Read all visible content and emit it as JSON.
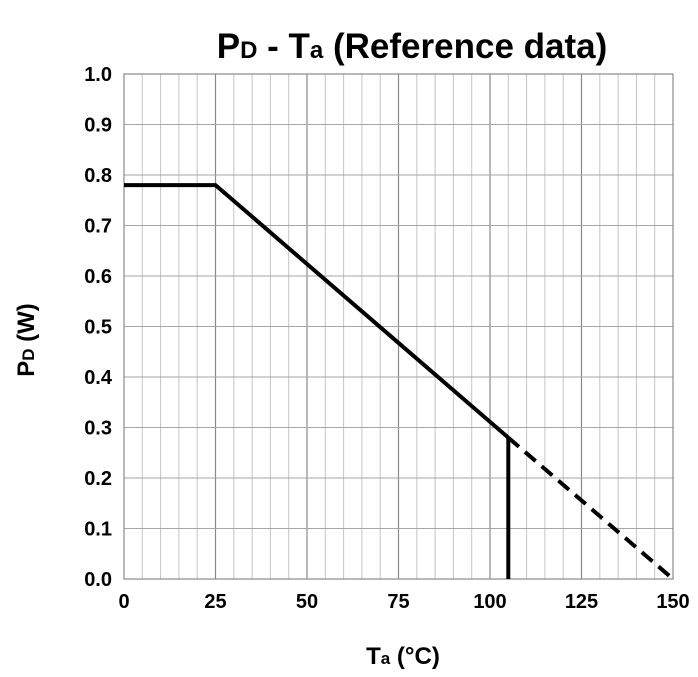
{
  "chart_data": {
    "type": "line",
    "title": {
      "main": "P",
      "main_sub": "D",
      "mid": " - T",
      "mid_sub": "a",
      "rest": " (Reference data)"
    },
    "xlabel": {
      "main": "T",
      "sub": "a",
      "rest": " (°C)"
    },
    "ylabel": {
      "main": "P",
      "sub": "D",
      "rest": " (W)"
    },
    "xlim": [
      0,
      150
    ],
    "ylim": [
      0,
      1.0
    ],
    "x_ticks": [
      0,
      25,
      50,
      75,
      100,
      125,
      150
    ],
    "x_tick_labels": [
      "0",
      "25",
      "50",
      "75",
      "100",
      "125",
      "150"
    ],
    "y_ticks": [
      0,
      0.1,
      0.2,
      0.3,
      0.4,
      0.5,
      0.6,
      0.7,
      0.8,
      0.9,
      1.0
    ],
    "y_tick_labels": [
      "0.0",
      "0.1",
      "0.2",
      "0.3",
      "0.4",
      "0.5",
      "0.6",
      "0.7",
      "0.8",
      "0.9",
      "1.0"
    ],
    "grid": {
      "x_minor_step": 5,
      "y_minor_step": 0.1,
      "major_x_step": 25
    },
    "series": [
      {
        "style": "solid",
        "color": "#000000",
        "points": [
          [
            0,
            0.78
          ],
          [
            25,
            0.78
          ],
          [
            105,
            0.28
          ]
        ]
      },
      {
        "style": "dashed",
        "color": "#000000",
        "points": [
          [
            105,
            0.28
          ],
          [
            150,
            0.0
          ]
        ]
      },
      {
        "style": "solid",
        "color": "#000000",
        "points": [
          [
            105,
            0.28
          ],
          [
            105,
            0.0
          ]
        ]
      }
    ]
  }
}
